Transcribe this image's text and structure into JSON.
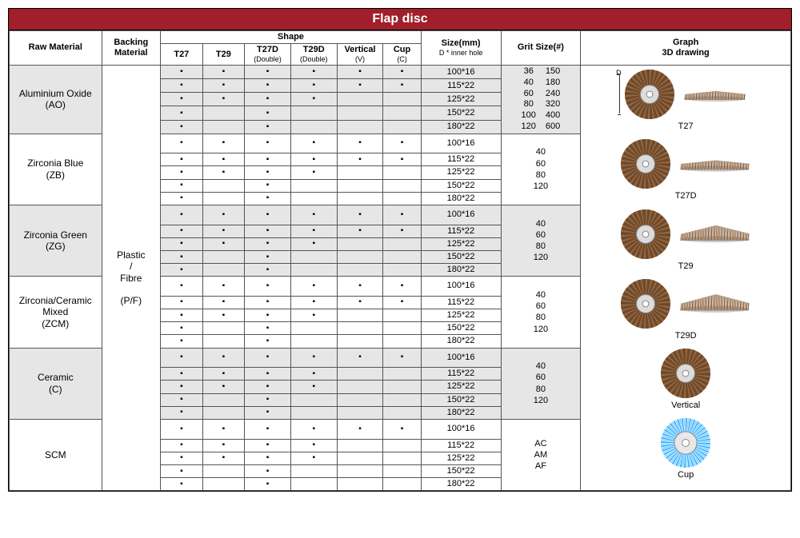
{
  "title": "Flap disc",
  "headers": {
    "raw": "Raw Material",
    "backing": "Backing\nMaterial",
    "shape": "Shape",
    "shapes": [
      "T27",
      "T29",
      "T27D",
      "T29D",
      "Vertical",
      "Cup"
    ],
    "shape_sub": [
      "",
      "",
      "(Double)",
      "(Double)",
      "(V)",
      "(C)"
    ],
    "size": "Size(mm)",
    "size_sub": "D * inner hole",
    "grit": "Grit Size(#)",
    "graph": "Graph\n3D drawing"
  },
  "backing_label": "Plastic\n/\nFibre\n\n(P/F)",
  "graph_labels": [
    "T27",
    "T27D",
    "T29",
    "T29D",
    "Vertical",
    "Cup"
  ],
  "colors": {
    "title_bg": "#a01f2a",
    "shade": "#e6e6e6",
    "disc_brown_dark": "#6e4a2e",
    "disc_brown_light": "#9a6a3e",
    "disc_center": "#dcdcdc",
    "cup_blue": "#2aa8ff",
    "cup_blue_light": "#7dd0ff"
  },
  "grit_ao_left": [
    "36",
    "40",
    "60",
    "80",
    "100",
    "120"
  ],
  "grit_ao_right": [
    "150",
    "180",
    "240",
    "320",
    "400",
    "600"
  ],
  "grit_common": [
    "40",
    "60",
    "80",
    "120"
  ],
  "grit_scm": [
    "AC",
    "AM",
    "AF"
  ],
  "groups": [
    {
      "name": "Aluminium Oxide\n(AO)",
      "shade": true,
      "rows": [
        {
          "dots": [
            1,
            1,
            1,
            1,
            1,
            1
          ],
          "size": "100*16"
        },
        {
          "dots": [
            1,
            1,
            1,
            1,
            1,
            1
          ],
          "size": "115*22"
        },
        {
          "dots": [
            1,
            1,
            1,
            1,
            0,
            0
          ],
          "size": "125*22"
        },
        {
          "dots": [
            1,
            0,
            1,
            0,
            0,
            0
          ],
          "size": "150*22"
        },
        {
          "dots": [
            1,
            0,
            1,
            0,
            0,
            0
          ],
          "size": "180*22"
        }
      ]
    },
    {
      "name": "Zirconia Blue\n(ZB)",
      "shade": false,
      "rows": [
        {
          "dots": [
            1,
            1,
            1,
            1,
            1,
            1
          ],
          "size": "100*16"
        },
        {
          "dots": [
            1,
            1,
            1,
            1,
            1,
            1
          ],
          "size": "115*22"
        },
        {
          "dots": [
            1,
            1,
            1,
            1,
            0,
            0
          ],
          "size": "125*22"
        },
        {
          "dots": [
            1,
            0,
            1,
            0,
            0,
            0
          ],
          "size": "150*22"
        },
        {
          "dots": [
            1,
            0,
            1,
            0,
            0,
            0
          ],
          "size": "180*22"
        }
      ]
    },
    {
      "name": "Zirconia Green\n(ZG)",
      "shade": true,
      "rows": [
        {
          "dots": [
            1,
            1,
            1,
            1,
            1,
            1
          ],
          "size": "100*16"
        },
        {
          "dots": [
            1,
            1,
            1,
            1,
            1,
            1
          ],
          "size": "115*22"
        },
        {
          "dots": [
            1,
            1,
            1,
            1,
            0,
            0
          ],
          "size": "125*22"
        },
        {
          "dots": [
            1,
            0,
            1,
            0,
            0,
            0
          ],
          "size": "150*22"
        },
        {
          "dots": [
            1,
            0,
            1,
            0,
            0,
            0
          ],
          "size": "180*22"
        }
      ]
    },
    {
      "name": "Zirconia/Ceramic\nMixed\n(ZCM)",
      "shade": false,
      "rows": [
        {
          "dots": [
            1,
            1,
            1,
            1,
            1,
            1
          ],
          "size": "100*16"
        },
        {
          "dots": [
            1,
            1,
            1,
            1,
            1,
            1
          ],
          "size": "115*22"
        },
        {
          "dots": [
            1,
            1,
            1,
            1,
            0,
            0
          ],
          "size": "125*22"
        },
        {
          "dots": [
            1,
            0,
            1,
            0,
            0,
            0
          ],
          "size": "150*22"
        },
        {
          "dots": [
            1,
            0,
            1,
            0,
            0,
            0
          ],
          "size": "180*22"
        }
      ]
    },
    {
      "name": "Ceramic\n(C)",
      "shade": true,
      "rows": [
        {
          "dots": [
            1,
            1,
            1,
            1,
            1,
            1
          ],
          "size": "100*16"
        },
        {
          "dots": [
            1,
            1,
            1,
            1,
            0,
            0
          ],
          "size": "115*22"
        },
        {
          "dots": [
            1,
            1,
            1,
            1,
            0,
            0
          ],
          "size": "125*22"
        },
        {
          "dots": [
            1,
            0,
            1,
            0,
            0,
            0
          ],
          "size": "150*22"
        },
        {
          "dots": [
            1,
            0,
            1,
            0,
            0,
            0
          ],
          "size": "180*22"
        }
      ]
    },
    {
      "name": "SCM",
      "shade": false,
      "rows": [
        {
          "dots": [
            1,
            1,
            1,
            1,
            1,
            1
          ],
          "size": "100*16"
        },
        {
          "dots": [
            1,
            1,
            1,
            1,
            0,
            0
          ],
          "size": "115*22"
        },
        {
          "dots": [
            1,
            1,
            1,
            1,
            0,
            0
          ],
          "size": "125*22"
        },
        {
          "dots": [
            1,
            0,
            1,
            0,
            0,
            0
          ],
          "size": "150*22"
        },
        {
          "dots": [
            1,
            0,
            1,
            0,
            0,
            0
          ],
          "size": "180*22"
        }
      ]
    }
  ]
}
